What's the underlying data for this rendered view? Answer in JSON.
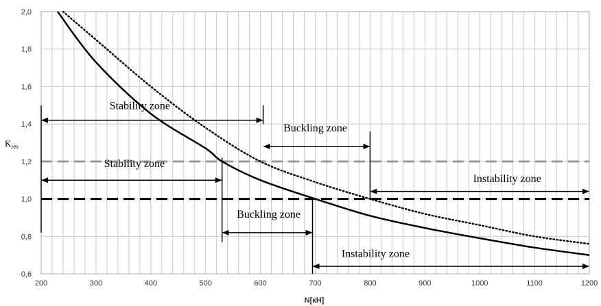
{
  "chart_data": {
    "type": "line",
    "xlabel": "N[кН]",
    "ylabel": {
      "main": "K",
      "sub": "res"
    },
    "xlim": [
      200,
      1200
    ],
    "ylim": [
      0.6,
      2.0
    ],
    "x_ticks": [
      "200",
      "300",
      "400",
      "500",
      "600",
      "700",
      "800",
      "900",
      "1000",
      "1100",
      "1200"
    ],
    "y_ticks": [
      "0,6",
      "0,8",
      "1,0",
      "1,2",
      "1,4",
      "1,6",
      "1,8",
      "2,0"
    ],
    "x_minor_step": 20,
    "grid": true,
    "series": [
      {
        "style": "solid",
        "color": "#000000",
        "x": [
          230,
          300,
          400,
          500,
          530,
          600,
          700,
          800,
          900,
          1000,
          1100,
          1200
        ],
        "y": [
          2.0,
          1.73,
          1.455,
          1.27,
          1.2,
          1.1,
          1.0,
          0.91,
          0.845,
          0.79,
          0.74,
          0.7
        ]
      },
      {
        "style": "dotted",
        "color": "#000000",
        "x": [
          240,
          300,
          400,
          500,
          600,
          700,
          800,
          900,
          1000,
          1100,
          1200
        ],
        "y": [
          2.0,
          1.85,
          1.6,
          1.38,
          1.2,
          1.09,
          1.0,
          0.92,
          0.86,
          0.8,
          0.76
        ]
      }
    ],
    "reference_lines": [
      {
        "y": 1.2,
        "style": "dashed",
        "color": "#999999"
      },
      {
        "y": 1.0,
        "style": "dashed",
        "color": "#000000"
      }
    ],
    "zone_markers": [
      {
        "x": 200,
        "y_from": 0.82,
        "y_to": 1.5
      },
      {
        "x": 605,
        "y_from": 1.4,
        "y_to": 1.5
      },
      {
        "x": 530,
        "y_from": 0.77,
        "y_to": 1.22
      },
      {
        "x": 800,
        "y_from": 1.0,
        "y_to": 1.36
      },
      {
        "x": 695,
        "y_from": 0.6,
        "y_to": 1.0
      }
    ],
    "zones": [
      {
        "label": "Stability zone",
        "x_from": 200,
        "x_to": 605,
        "y": 1.42,
        "label_x": 380,
        "label_y": 1.48
      },
      {
        "label": "Buckling zone",
        "x_from": 605,
        "x_to": 800,
        "y": 1.28,
        "label_x": 700,
        "label_y": 1.36
      },
      {
        "label": "Stability zone",
        "x_from": 200,
        "x_to": 530,
        "y": 1.1,
        "label_x": 370,
        "label_y": 1.17
      },
      {
        "label": "Buckling zone",
        "x_from": 530,
        "x_to": 695,
        "y": 0.82,
        "label_x": 615,
        "label_y": 0.9
      },
      {
        "label": "Instability zone",
        "x_from": 800,
        "x_to": 1200,
        "y": 1.04,
        "label_x": 1050,
        "label_y": 1.09
      },
      {
        "label": "Instability zone",
        "x_from": 695,
        "x_to": 1200,
        "y": 0.64,
        "label_x": 810,
        "label_y": 0.69
      }
    ]
  }
}
